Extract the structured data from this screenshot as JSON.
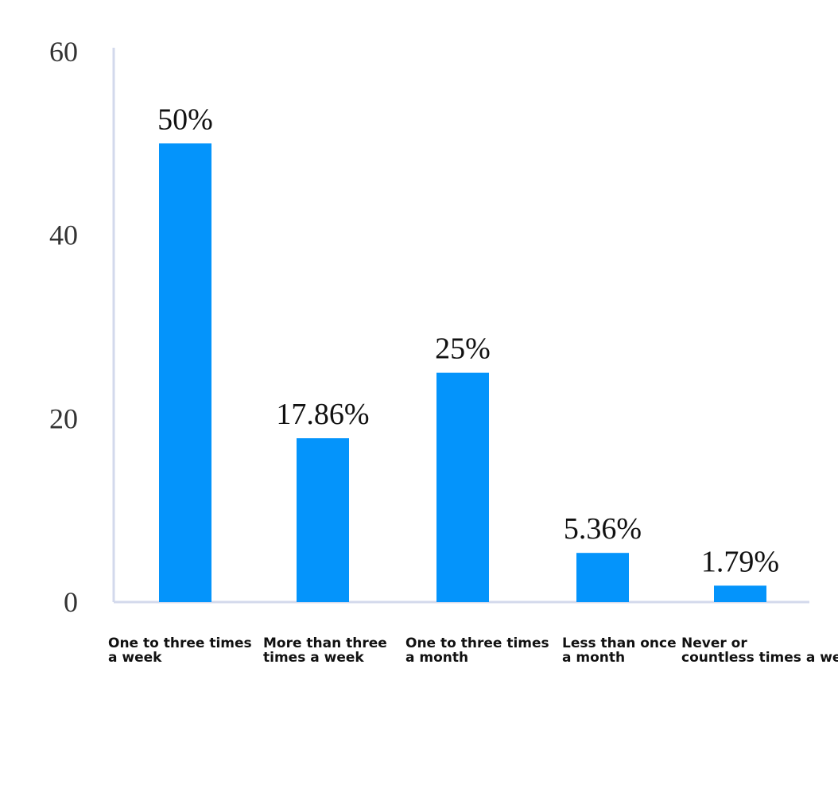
{
  "chart_data": {
    "type": "bar",
    "title": "",
    "xlabel": "",
    "ylabel": "",
    "ylim": [
      0,
      60
    ],
    "yticks": [
      0,
      20,
      40,
      60
    ],
    "grid": false,
    "legend": "none",
    "bar_color": "#0494fb",
    "categories": [
      [
        "One to three times",
        " a week"
      ],
      [
        "More than three",
        "times a week"
      ],
      [
        "One to three times",
        "a month"
      ],
      [
        "Less than once",
        "a month"
      ],
      [
        "Never or",
        "countless times a week"
      ]
    ],
    "values": [
      50,
      17.86,
      25,
      5.36,
      1.79
    ],
    "data_labels": [
      "50%",
      "17.86%",
      "25%",
      "5.36%",
      "1.79%"
    ]
  }
}
